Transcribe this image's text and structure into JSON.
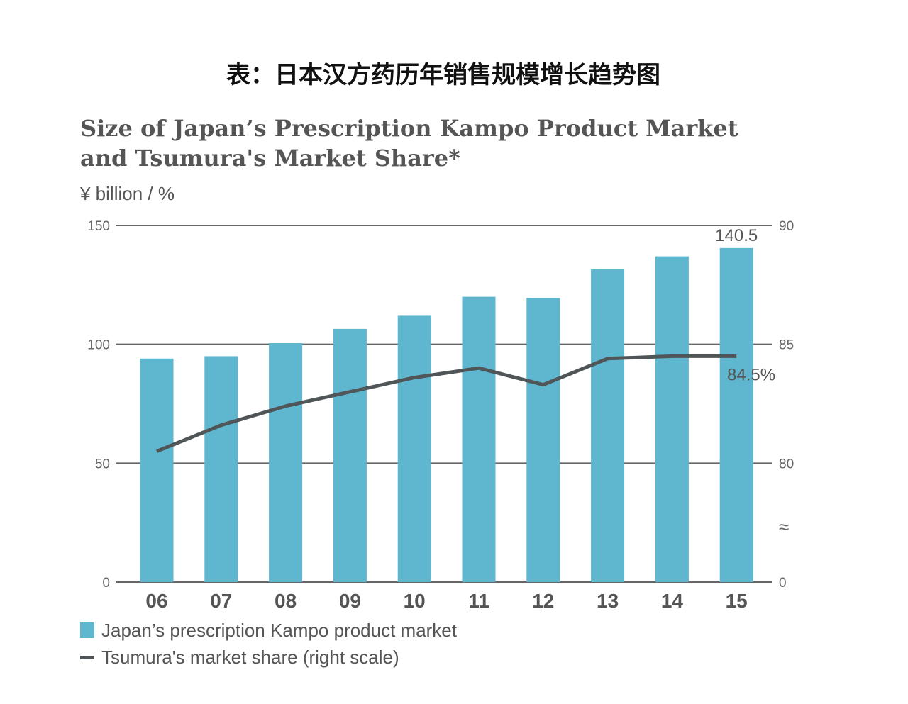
{
  "cn_title": "表：日本汉方药历年销售规模增长趋势图",
  "chart_data": {
    "type": "bar",
    "title": "Size of Japan's Prescription Kampo Product Market and Tsumura's Market Share*",
    "title_lines": [
      "Size of Japan’s Prescription Kampo Product Market",
      "and Tsumura's Market Share*"
    ],
    "unit_label": "¥ billion / %",
    "categories": [
      "06",
      "07",
      "08",
      "09",
      "10",
      "11",
      "12",
      "13",
      "14",
      "15"
    ],
    "series": [
      {
        "name": "Japan’s prescription Kampo product market",
        "type": "bar",
        "axis": "left",
        "color": "#5fb6cf",
        "values": [
          94,
          95,
          100.5,
          106.5,
          112,
          120,
          119.5,
          131.5,
          137,
          140.5
        ]
      },
      {
        "name": "Tsumura's market share (right scale)",
        "type": "line",
        "axis": "right",
        "color": "#505558",
        "values": [
          80.5,
          81.6,
          82.4,
          83.0,
          83.6,
          84.0,
          83.3,
          84.4,
          84.5,
          84.5
        ]
      }
    ],
    "left_axis": {
      "ylim": [
        0,
        150
      ],
      "ticks": [
        0,
        50,
        100,
        150
      ]
    },
    "right_axis": {
      "ticks": [
        0,
        80,
        85,
        90
      ],
      "break_symbol": "≈"
    },
    "annotations": [
      "140.5",
      "84.5%"
    ],
    "grid": true,
    "legend": "bottom-left"
  }
}
